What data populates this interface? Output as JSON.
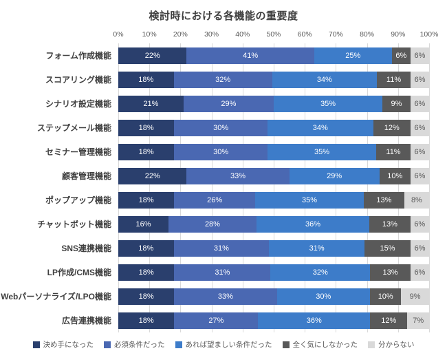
{
  "chart_data": {
    "type": "bar",
    "stacked": true,
    "orientation": "horizontal",
    "title": "検討時における各機能の重要度",
    "x_axis": {
      "min": 0,
      "max": 100,
      "tick_step": 10,
      "tick_suffix": "%",
      "position": "top",
      "grid": true
    },
    "grid_color": "#d9d9d9",
    "categories": [
      "フォーム作成機能",
      "スコアリング機能",
      "シナリオ設定機能",
      "ステップメール機能",
      "セミナー管理機能",
      "顧客管理機能",
      "ポップアップ機能",
      "チャットボット機能",
      "SNS連携機能",
      "LP作成/CMS機能",
      "Webパーソナライズ/LPO機能",
      "広告連携機能"
    ],
    "series": [
      {
        "name": "決め手になった",
        "color": "#2a3f6d",
        "label_color": "#ffffff",
        "values": [
          22,
          18,
          21,
          18,
          18,
          22,
          18,
          16,
          18,
          18,
          18,
          18
        ]
      },
      {
        "name": "必須条件だった",
        "color": "#4a68b2",
        "label_color": "#ffffff",
        "values": [
          41,
          32,
          29,
          30,
          30,
          33,
          26,
          28,
          31,
          31,
          33,
          27
        ]
      },
      {
        "name": "あれば望ましい条件だった",
        "color": "#3d7cc9",
        "label_color": "#ffffff",
        "values": [
          25,
          34,
          35,
          34,
          35,
          29,
          35,
          36,
          31,
          32,
          30,
          36
        ]
      },
      {
        "name": "全く気にしなかった",
        "color": "#595959",
        "label_color": "#ffffff",
        "values": [
          6,
          11,
          9,
          12,
          11,
          10,
          13,
          13,
          15,
          13,
          10,
          12
        ]
      },
      {
        "name": "分からない",
        "color": "#d9d9d9",
        "label_color": "#595959",
        "values": [
          6,
          6,
          6,
          6,
          6,
          6,
          8,
          6,
          6,
          6,
          9,
          7
        ]
      }
    ],
    "value_suffix": "%",
    "legend_position": "bottom"
  }
}
